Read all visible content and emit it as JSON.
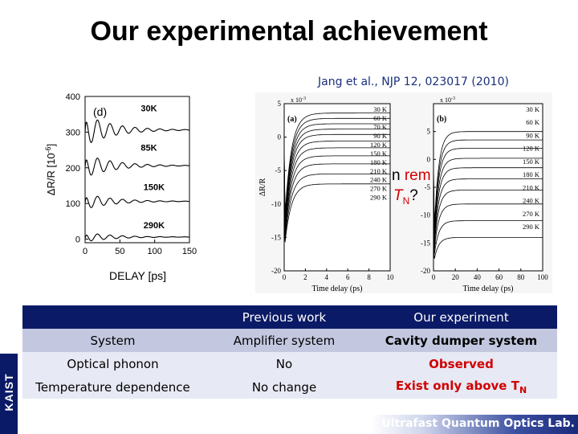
{
  "title": "Our experimental achievement",
  "reference": "Jang et al., NJP 12, 023017 (2010)",
  "overlay": {
    "text1": "n",
    "text2": "rem",
    "text3": "T",
    "sub": "N",
    "text4": "?"
  },
  "footer": {
    "side_label": "KAIST",
    "lab": "Ultrafast Quantum Optics Lab."
  },
  "table": {
    "headers": [
      "",
      "Previous work",
      "Our experiment"
    ],
    "rows": [
      {
        "label": "System",
        "prev": "Amplifier system",
        "ours": "Cavity dumper system"
      },
      {
        "label": "Optical phonon",
        "prev": "No",
        "ours": "Observed"
      },
      {
        "label": "Temperature dependence",
        "prev": "No change",
        "ours": "Exist only above T",
        "ours_sub": "N"
      }
    ]
  },
  "colors": {
    "header_bg": "#0a1a66",
    "highlight": "#d10000"
  },
  "chart_data": [
    {
      "type": "line",
      "panel_label": "(d)",
      "xlabel": "DELAY [ps]",
      "ylabel": "ΔR/R [10",
      "ylabel_exp": "-6",
      "ylabel_end": "]",
      "xlim": [
        0,
        150
      ],
      "ylim": [
        -10,
        400
      ],
      "xticks": [
        0,
        50,
        100,
        150
      ],
      "yticks": [
        0,
        100,
        200,
        300,
        400
      ],
      "series": [
        {
          "name": "30K",
          "offset": 300,
          "amp": 20,
          "level": 300
        },
        {
          "name": "85K",
          "offset": 200,
          "amp": 15,
          "level": 200
        },
        {
          "name": "150K",
          "offset": 100,
          "amp": 10,
          "level": 100
        },
        {
          "name": "290K",
          "offset": 0,
          "amp": 6,
          "level": 0
        }
      ]
    },
    {
      "type": "line",
      "panel_label": "(a)",
      "xlabel": "Time delay (ps)",
      "ylabel": "ΔR/R",
      "exponent": "x 10",
      "exponent_sup": "-3",
      "xlim": [
        0,
        10
      ],
      "ylim": [
        -20,
        5
      ],
      "xticks": [
        0,
        2,
        4,
        6,
        8,
        10
      ],
      "yticks": [
        5,
        0,
        -5,
        -10,
        -15,
        -20
      ],
      "series": [
        {
          "name": "30 K",
          "level": 3.6
        },
        {
          "name": "60 K",
          "level": 2.8
        },
        {
          "name": "70 K",
          "level": 2.0
        },
        {
          "name": "90 K",
          "level": 1.2
        },
        {
          "name": "120 K",
          "level": 0.4
        },
        {
          "name": "150 K",
          "level": -0.6
        },
        {
          "name": "180 K",
          "level": -1.6
        },
        {
          "name": "210 K",
          "level": -2.8
        },
        {
          "name": "240 K",
          "level": -4.0
        },
        {
          "name": "270 K",
          "level": -5.5
        },
        {
          "name": "290 K",
          "level": -7.0
        }
      ]
    },
    {
      "type": "line",
      "panel_label": "(b)",
      "xlabel": "Time delay (ps)",
      "exponent": "x 10",
      "exponent_sup": "-3",
      "xlim": [
        0,
        100
      ],
      "ylim": [
        -20,
        10
      ],
      "xticks": [
        0,
        20,
        40,
        60,
        80,
        100
      ],
      "yticks": [
        5,
        0,
        -5,
        -10,
        -15,
        -20
      ],
      "series": [
        {
          "name": "30 K",
          "level": 5.0
        },
        {
          "name": "60 K",
          "level": 3.5
        },
        {
          "name": "90 K",
          "level": 2.0
        },
        {
          "name": "120 K",
          "level": 0.2
        },
        {
          "name": "150 K",
          "level": -1.5
        },
        {
          "name": "180 K",
          "level": -3.5
        },
        {
          "name": "210 K",
          "level": -5.5
        },
        {
          "name": "240 K",
          "level": -8.0
        },
        {
          "name": "270 K",
          "level": -11.0
        },
        {
          "name": "290 K",
          "level": -14.0
        }
      ]
    }
  ]
}
